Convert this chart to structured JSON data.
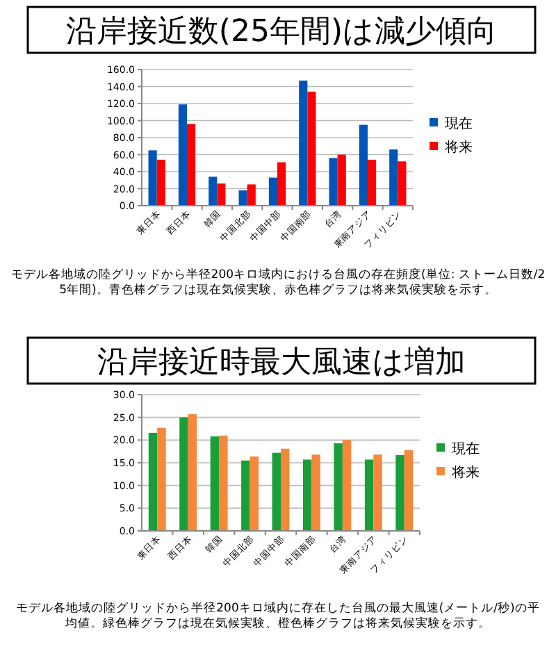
{
  "chart_data": [
    {
      "type": "bar",
      "title": "沿岸接近数(25年間)は減少傾向",
      "categories": [
        "東日本",
        "西日本",
        "韓国",
        "中国北部",
        "中国中部",
        "中国南部",
        "台湾",
        "東南アジア",
        "フィリピン"
      ],
      "series": [
        {
          "name": "現在",
          "color": "#0055b8",
          "values": [
            65,
            119,
            34,
            18,
            33,
            147,
            56,
            95,
            66
          ]
        },
        {
          "name": "将来",
          "color": "#ff0000",
          "values": [
            54,
            96,
            26,
            25,
            51,
            134,
            60,
            54,
            52
          ]
        }
      ],
      "ylim": [
        0,
        160
      ],
      "yticks": [
        {
          "value": 0,
          "label": "0.0"
        },
        {
          "value": 20,
          "label": "20.0"
        },
        {
          "value": 40,
          "label": "40.0"
        },
        {
          "value": 60,
          "label": "60.0"
        },
        {
          "value": 80,
          "label": "80.0"
        },
        {
          "value": 100,
          "label": "100.0"
        },
        {
          "value": 120,
          "label": "120.0"
        },
        {
          "value": 140,
          "label": "140.0"
        },
        {
          "value": 160,
          "label": "160.0"
        }
      ],
      "grid": "y",
      "legend": "right",
      "annotations": [
        "モデル各地域の陸グリッドから半径200キロ域内における台風の存在頻度(単位: ストーム日数/25年間)。青色棒グラフは現在気候実験、赤色棒グラフは将来気候実験を示す。"
      ]
    },
    {
      "type": "bar",
      "title": "沿岸接近時最大風速は増加",
      "categories": [
        "東日本",
        "西日本",
        "韓国",
        "中国北部",
        "中国中部",
        "中国南部",
        "台湾",
        "東南アジア",
        "フィリピン"
      ],
      "series": [
        {
          "name": "現在",
          "color": "#1a9e3a",
          "values": [
            21.6,
            25.0,
            20.8,
            15.5,
            17.2,
            15.7,
            19.3,
            15.7,
            16.7
          ]
        },
        {
          "name": "将来",
          "color": "#f5883a",
          "values": [
            22.7,
            25.7,
            21.0,
            16.4,
            18.1,
            16.8,
            20.0,
            16.8,
            17.8
          ]
        }
      ],
      "ylim": [
        0,
        30
      ],
      "yticks": [
        {
          "value": 0,
          "label": "0.0"
        },
        {
          "value": 5,
          "label": "5.0"
        },
        {
          "value": 10,
          "label": "10.0"
        },
        {
          "value": 15,
          "label": "15.0"
        },
        {
          "value": 20,
          "label": "20.0"
        },
        {
          "value": 25,
          "label": "25.0"
        },
        {
          "value": 30,
          "label": "30.0"
        }
      ],
      "grid": "y",
      "legend": "right",
      "annotations": [
        "モデル各地域の陸グリッドから半径200キロ域内に存在した台風の最大風速(メートル/秒)の平均値。緑色棒グラフは現在気候実験、橙色棒グラフは将来気候実験を示す。"
      ]
    }
  ]
}
